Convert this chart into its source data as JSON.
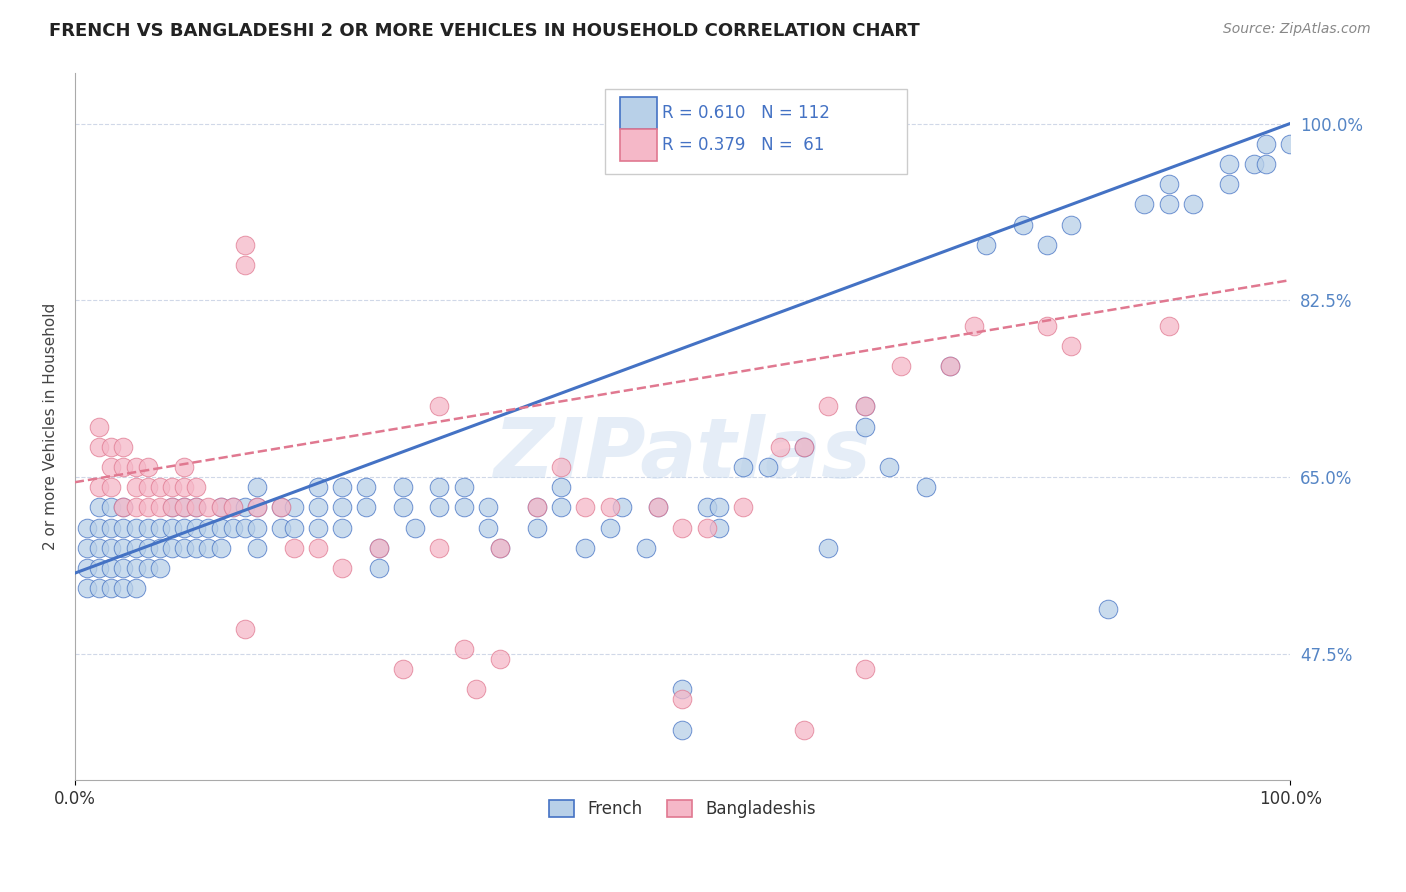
{
  "title": "FRENCH VS BANGLADESHI 2 OR MORE VEHICLES IN HOUSEHOLD CORRELATION CHART",
  "source": "Source: ZipAtlas.com",
  "ylabel": "2 or more Vehicles in Household",
  "watermark": "ZIPatlas",
  "french_R": 0.61,
  "french_N": 112,
  "bangladeshi_R": 0.379,
  "bangladeshi_N": 61,
  "xlim": [
    0.0,
    1.0
  ],
  "ylim": [
    0.35,
    1.05
  ],
  "xticklabels": [
    "0.0%",
    "100.0%"
  ],
  "ytick_values": [
    0.475,
    0.65,
    0.825,
    1.0
  ],
  "ytick_labels": [
    "47.5%",
    "65.0%",
    "82.5%",
    "100.0%"
  ],
  "french_color": "#b8d0e8",
  "bangladeshi_color": "#f5b8c8",
  "french_line_color": "#4472c4",
  "bangladeshi_line_color": "#e07890",
  "background_color": "#ffffff",
  "french_scatter": [
    [
      0.01,
      0.54
    ],
    [
      0.01,
      0.56
    ],
    [
      0.01,
      0.58
    ],
    [
      0.01,
      0.6
    ],
    [
      0.02,
      0.54
    ],
    [
      0.02,
      0.56
    ],
    [
      0.02,
      0.58
    ],
    [
      0.02,
      0.6
    ],
    [
      0.02,
      0.62
    ],
    [
      0.03,
      0.54
    ],
    [
      0.03,
      0.56
    ],
    [
      0.03,
      0.58
    ],
    [
      0.03,
      0.6
    ],
    [
      0.03,
      0.62
    ],
    [
      0.04,
      0.54
    ],
    [
      0.04,
      0.56
    ],
    [
      0.04,
      0.58
    ],
    [
      0.04,
      0.6
    ],
    [
      0.04,
      0.62
    ],
    [
      0.05,
      0.54
    ],
    [
      0.05,
      0.56
    ],
    [
      0.05,
      0.58
    ],
    [
      0.05,
      0.6
    ],
    [
      0.06,
      0.56
    ],
    [
      0.06,
      0.58
    ],
    [
      0.06,
      0.6
    ],
    [
      0.07,
      0.56
    ],
    [
      0.07,
      0.58
    ],
    [
      0.07,
      0.6
    ],
    [
      0.08,
      0.58
    ],
    [
      0.08,
      0.6
    ],
    [
      0.08,
      0.62
    ],
    [
      0.09,
      0.58
    ],
    [
      0.09,
      0.6
    ],
    [
      0.09,
      0.62
    ],
    [
      0.1,
      0.58
    ],
    [
      0.1,
      0.6
    ],
    [
      0.1,
      0.62
    ],
    [
      0.11,
      0.58
    ],
    [
      0.11,
      0.6
    ],
    [
      0.12,
      0.58
    ],
    [
      0.12,
      0.6
    ],
    [
      0.12,
      0.62
    ],
    [
      0.13,
      0.6
    ],
    [
      0.13,
      0.62
    ],
    [
      0.14,
      0.6
    ],
    [
      0.14,
      0.62
    ],
    [
      0.15,
      0.58
    ],
    [
      0.15,
      0.6
    ],
    [
      0.15,
      0.62
    ],
    [
      0.15,
      0.64
    ],
    [
      0.17,
      0.6
    ],
    [
      0.17,
      0.62
    ],
    [
      0.18,
      0.6
    ],
    [
      0.18,
      0.62
    ],
    [
      0.2,
      0.6
    ],
    [
      0.2,
      0.62
    ],
    [
      0.2,
      0.64
    ],
    [
      0.22,
      0.6
    ],
    [
      0.22,
      0.62
    ],
    [
      0.22,
      0.64
    ],
    [
      0.24,
      0.62
    ],
    [
      0.24,
      0.64
    ],
    [
      0.25,
      0.56
    ],
    [
      0.25,
      0.58
    ],
    [
      0.27,
      0.62
    ],
    [
      0.27,
      0.64
    ],
    [
      0.28,
      0.6
    ],
    [
      0.3,
      0.62
    ],
    [
      0.3,
      0.64
    ],
    [
      0.32,
      0.62
    ],
    [
      0.32,
      0.64
    ],
    [
      0.34,
      0.6
    ],
    [
      0.34,
      0.62
    ],
    [
      0.35,
      0.58
    ],
    [
      0.38,
      0.6
    ],
    [
      0.38,
      0.62
    ],
    [
      0.4,
      0.62
    ],
    [
      0.4,
      0.64
    ],
    [
      0.42,
      0.58
    ],
    [
      0.44,
      0.6
    ],
    [
      0.45,
      0.62
    ],
    [
      0.47,
      0.58
    ],
    [
      0.48,
      0.62
    ],
    [
      0.5,
      0.4
    ],
    [
      0.5,
      0.44
    ],
    [
      0.52,
      0.62
    ],
    [
      0.53,
      0.6
    ],
    [
      0.53,
      0.62
    ],
    [
      0.55,
      0.66
    ],
    [
      0.57,
      0.66
    ],
    [
      0.6,
      0.68
    ],
    [
      0.62,
      0.58
    ],
    [
      0.65,
      0.7
    ],
    [
      0.65,
      0.72
    ],
    [
      0.67,
      0.66
    ],
    [
      0.7,
      0.64
    ],
    [
      0.72,
      0.76
    ],
    [
      0.75,
      0.88
    ],
    [
      0.78,
      0.9
    ],
    [
      0.8,
      0.88
    ],
    [
      0.82,
      0.9
    ],
    [
      0.85,
      0.52
    ],
    [
      0.88,
      0.92
    ],
    [
      0.9,
      0.92
    ],
    [
      0.9,
      0.94
    ],
    [
      0.92,
      0.92
    ],
    [
      0.95,
      0.94
    ],
    [
      0.95,
      0.96
    ],
    [
      0.97,
      0.96
    ],
    [
      0.98,
      0.96
    ],
    [
      0.98,
      0.98
    ],
    [
      1.0,
      0.98
    ]
  ],
  "bangladeshi_scatter": [
    [
      0.02,
      0.64
    ],
    [
      0.02,
      0.68
    ],
    [
      0.02,
      0.7
    ],
    [
      0.03,
      0.64
    ],
    [
      0.03,
      0.66
    ],
    [
      0.03,
      0.68
    ],
    [
      0.04,
      0.62
    ],
    [
      0.04,
      0.66
    ],
    [
      0.04,
      0.68
    ],
    [
      0.05,
      0.62
    ],
    [
      0.05,
      0.64
    ],
    [
      0.05,
      0.66
    ],
    [
      0.06,
      0.62
    ],
    [
      0.06,
      0.64
    ],
    [
      0.06,
      0.66
    ],
    [
      0.07,
      0.62
    ],
    [
      0.07,
      0.64
    ],
    [
      0.08,
      0.62
    ],
    [
      0.08,
      0.64
    ],
    [
      0.09,
      0.62
    ],
    [
      0.09,
      0.64
    ],
    [
      0.09,
      0.66
    ],
    [
      0.1,
      0.62
    ],
    [
      0.1,
      0.64
    ],
    [
      0.11,
      0.62
    ],
    [
      0.12,
      0.62
    ],
    [
      0.13,
      0.62
    ],
    [
      0.14,
      0.86
    ],
    [
      0.14,
      0.88
    ],
    [
      0.15,
      0.62
    ],
    [
      0.17,
      0.62
    ],
    [
      0.18,
      0.58
    ],
    [
      0.2,
      0.58
    ],
    [
      0.22,
      0.56
    ],
    [
      0.25,
      0.58
    ],
    [
      0.27,
      0.46
    ],
    [
      0.3,
      0.72
    ],
    [
      0.3,
      0.58
    ],
    [
      0.32,
      0.48
    ],
    [
      0.33,
      0.44
    ],
    [
      0.35,
      0.58
    ],
    [
      0.38,
      0.62
    ],
    [
      0.4,
      0.66
    ],
    [
      0.42,
      0.62
    ],
    [
      0.44,
      0.62
    ],
    [
      0.48,
      0.62
    ],
    [
      0.5,
      0.6
    ],
    [
      0.52,
      0.6
    ],
    [
      0.55,
      0.62
    ],
    [
      0.58,
      0.68
    ],
    [
      0.6,
      0.68
    ],
    [
      0.62,
      0.72
    ],
    [
      0.65,
      0.72
    ],
    [
      0.68,
      0.76
    ],
    [
      0.72,
      0.76
    ],
    [
      0.74,
      0.8
    ],
    [
      0.8,
      0.8
    ],
    [
      0.82,
      0.78
    ],
    [
      0.9,
      0.8
    ],
    [
      0.14,
      0.5
    ],
    [
      0.35,
      0.47
    ],
    [
      0.5,
      0.43
    ],
    [
      0.6,
      0.4
    ],
    [
      0.65,
      0.46
    ]
  ]
}
